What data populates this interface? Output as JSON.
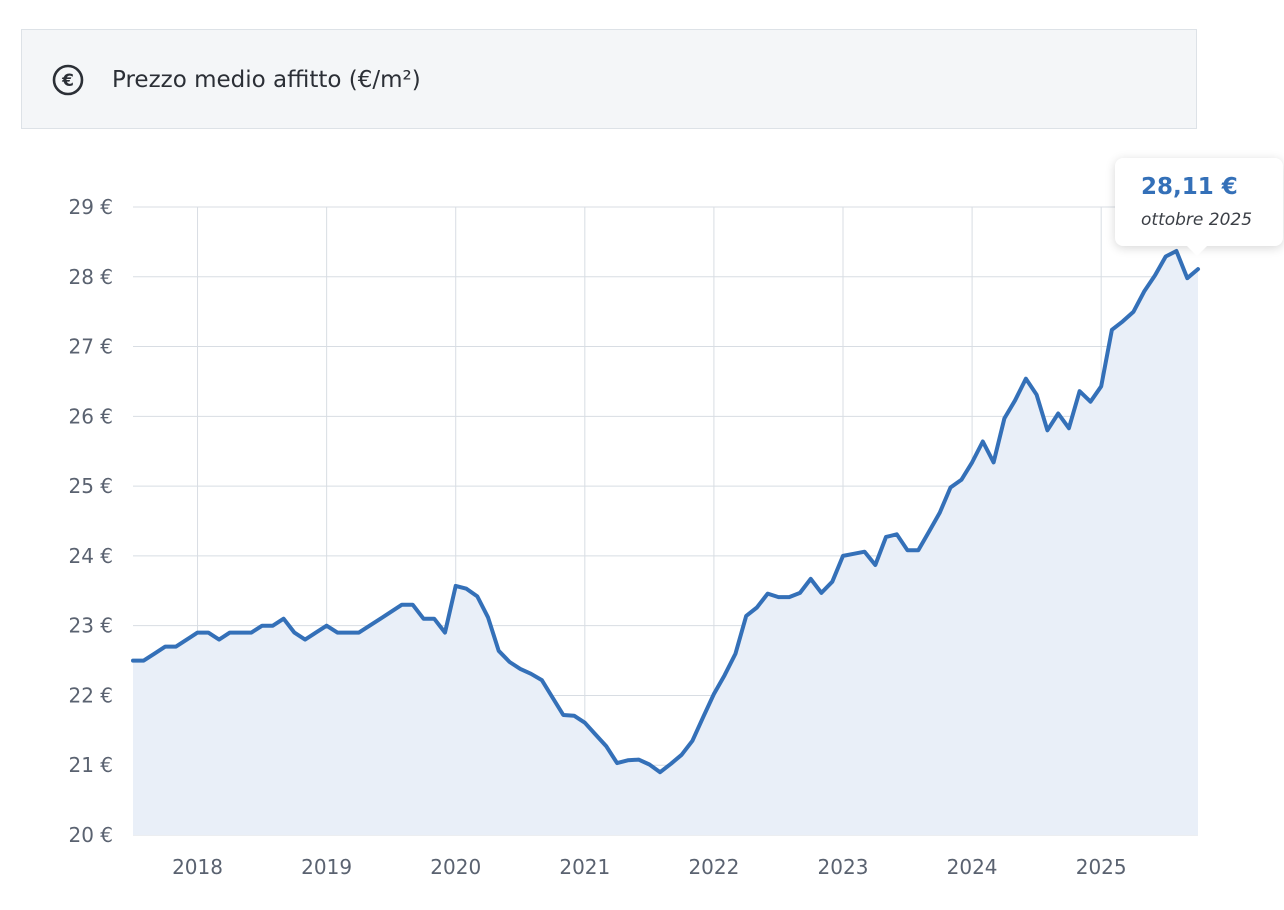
{
  "header": {
    "title": "Prezzo medio affitto (€/m²)",
    "icon": "euro-icon"
  },
  "tooltip": {
    "value": "28,11 €",
    "date": "ottobre 2025"
  },
  "colors": {
    "line": "#3470b8",
    "area": "#e9eff8",
    "grid": "#d8dde3",
    "tooltip_value": "#3470b8"
  },
  "chart_data": {
    "type": "area",
    "title": "Prezzo medio affitto (€/m²)",
    "xlabel": "",
    "ylabel": "",
    "ylim": [
      20,
      29
    ],
    "xlim": [
      2017.5,
      2025.75
    ],
    "grid": true,
    "y_ticks": [
      20,
      21,
      22,
      23,
      24,
      25,
      26,
      27,
      28,
      29
    ],
    "y_tick_labels": [
      "20 €",
      "21 €",
      "22 €",
      "23 €",
      "24 €",
      "25 €",
      "26 €",
      "27 €",
      "28 €",
      "29 €"
    ],
    "x_ticks": [
      2018,
      2019,
      2020,
      2021,
      2022,
      2023,
      2024,
      2025
    ],
    "x_tick_labels": [
      "2018",
      "2019",
      "2020",
      "2021",
      "2022",
      "2023",
      "2024",
      "2025"
    ],
    "series": [
      {
        "x": [
          2017.5,
          2017.583,
          2017.667,
          2017.75,
          2017.833,
          2017.917,
          2018.0,
          2018.083,
          2018.167,
          2018.25,
          2018.333,
          2018.417,
          2018.5,
          2018.583,
          2018.667,
          2018.75,
          2018.833,
          2018.917,
          2019.0,
          2019.083,
          2019.167,
          2019.25,
          2019.333,
          2019.417,
          2019.5,
          2019.583,
          2019.667,
          2019.75,
          2019.833,
          2019.917,
          2020.0,
          2020.083,
          2020.167,
          2020.25,
          2020.333,
          2020.417,
          2020.5,
          2020.583,
          2020.667,
          2020.75,
          2020.833,
          2020.917,
          2021.0,
          2021.083,
          2021.167,
          2021.25,
          2021.333,
          2021.417,
          2021.5,
          2021.583,
          2021.667,
          2021.75,
          2021.833,
          2021.917,
          2022.0,
          2022.083,
          2022.167,
          2022.25,
          2022.333,
          2022.417,
          2022.5,
          2022.583,
          2022.667,
          2022.75,
          2022.833,
          2022.917,
          2023.0,
          2023.083,
          2023.167,
          2023.25,
          2023.333,
          2023.417,
          2023.5,
          2023.583,
          2023.667,
          2023.75,
          2023.833,
          2023.917,
          2024.0,
          2024.083,
          2024.167,
          2024.25,
          2024.333,
          2024.417,
          2024.5,
          2024.583,
          2024.667,
          2024.75,
          2024.833,
          2024.917,
          2025.0,
          2025.083,
          2025.167,
          2025.25,
          2025.333,
          2025.417,
          2025.5,
          2025.583,
          2025.667,
          2025.75
        ],
        "y": [
          22.5,
          22.5,
          22.6,
          22.7,
          22.7,
          22.8,
          22.9,
          22.9,
          22.8,
          22.9,
          22.9,
          22.9,
          23.0,
          23.0,
          23.1,
          22.9,
          22.8,
          22.9,
          23.0,
          22.9,
          22.9,
          22.9,
          23.0,
          23.1,
          23.2,
          23.3,
          23.3,
          23.1,
          23.1,
          22.9,
          23.57,
          23.53,
          23.42,
          23.12,
          22.64,
          22.48,
          22.38,
          22.31,
          22.22,
          21.97,
          21.72,
          21.71,
          21.61,
          21.44,
          21.27,
          21.03,
          21.07,
          21.08,
          21.01,
          20.9,
          21.02,
          21.15,
          21.35,
          21.69,
          22.02,
          22.29,
          22.6,
          23.14,
          23.26,
          23.46,
          23.41,
          23.41,
          23.47,
          23.67,
          23.47,
          23.63,
          24.0,
          24.03,
          24.06,
          23.87,
          24.27,
          24.31,
          24.08,
          24.08,
          24.35,
          24.62,
          24.98,
          25.09,
          25.34,
          25.64,
          25.34,
          25.97,
          26.23,
          26.54,
          26.31,
          25.8,
          26.04,
          25.83,
          26.36,
          26.21,
          26.43,
          27.24,
          27.36,
          27.5,
          27.79,
          28.02,
          28.29,
          28.37,
          27.98,
          28.11
        ]
      }
    ]
  }
}
